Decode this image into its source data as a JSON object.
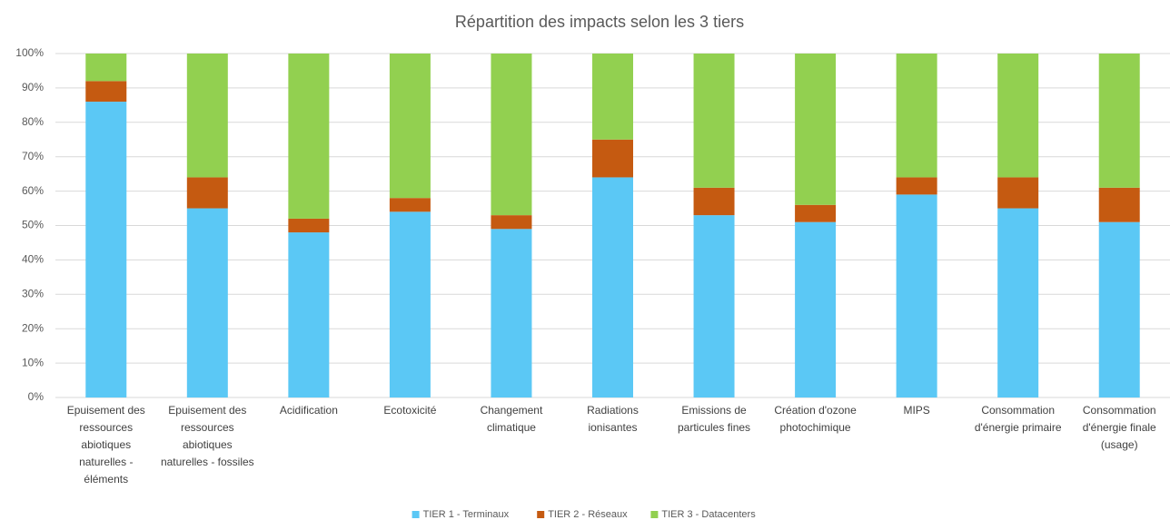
{
  "chart_data": {
    "type": "stacked_bar",
    "title": "Répartition des impacts selon les 3 tiers",
    "categories": [
      "Epuisement des ressources abiotiques naturelles - éléments",
      "Epuisement des ressources abiotiques naturelles - fossiles",
      "Acidification",
      "Ecotoxicité",
      "Changement climatique",
      "Radiations ionisantes",
      "Emissions de particules fines",
      "Création d'ozone photochimique",
      "MIPS",
      "Consommation d'énergie primaire",
      "Consommation d'énergie finale (usage)"
    ],
    "series": [
      {
        "name": "TIER 1 - Terminaux",
        "color": "#5bc8f5",
        "values": [
          86,
          55,
          48,
          54,
          49,
          64,
          53,
          51,
          59,
          55,
          51
        ]
      },
      {
        "name": "TIER 2 - Réseaux",
        "color": "#c55a11",
        "values": [
          6,
          9,
          4,
          4,
          4,
          11,
          8,
          5,
          5,
          9,
          10
        ]
      },
      {
        "name": "TIER 3 - Datacenters",
        "color": "#92d050",
        "values": [
          8,
          36,
          48,
          42,
          47,
          25,
          39,
          44,
          36,
          36,
          39
        ]
      }
    ],
    "ylim": [
      0,
      100
    ],
    "yticks": [
      {
        "value": 0,
        "label": "0%"
      },
      {
        "value": 10,
        "label": "10%"
      },
      {
        "value": 20,
        "label": "20%"
      },
      {
        "value": 30,
        "label": "30%"
      },
      {
        "value": 40,
        "label": "40%"
      },
      {
        "value": 50,
        "label": "50%"
      },
      {
        "value": 60,
        "label": "60%"
      },
      {
        "value": 70,
        "label": "70%"
      },
      {
        "value": 80,
        "label": "80%"
      },
      {
        "value": 90,
        "label": "90%"
      },
      {
        "value": 100,
        "label": "100%"
      }
    ],
    "grid": true,
    "legend": "bottom"
  }
}
